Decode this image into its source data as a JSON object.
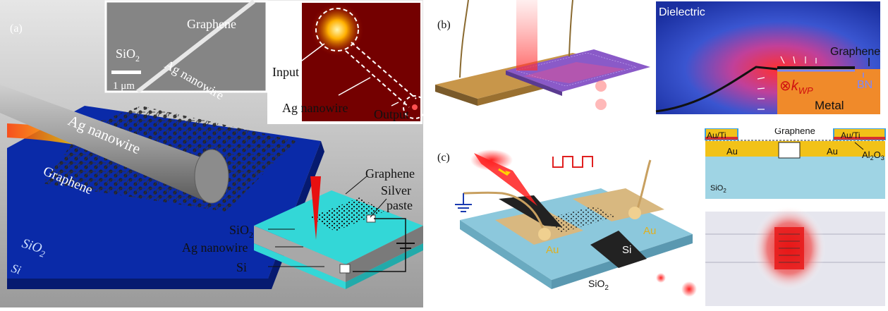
{
  "panel_a": {
    "label": "(a)",
    "inset_sem": {
      "graphene": "Graphene",
      "nanowire": "Ag nanowire",
      "substrate": "SiO",
      "substrate_sub": "2",
      "scale": "1 μm"
    },
    "inset_optical": {
      "input": "Input",
      "nanowire": "Ag nanowire",
      "output": "Output"
    },
    "main": {
      "nanowire": "Ag nanowire",
      "graphene": "Graphene",
      "sio2": "SiO",
      "sio2_sub": "2",
      "si": "Si"
    },
    "device": {
      "graphene": "Graphene",
      "silver_paste_1": "Silver",
      "silver_paste_2": "paste",
      "sio2": "SiO",
      "sio2_sub": "2",
      "nanowire": "Ag nanowire",
      "si": "Si"
    }
  },
  "panel_b": {
    "label": "(b)",
    "sim": {
      "dielectric": "Dielectric",
      "graphene": "Graphene",
      "kwp": "k",
      "kwp_sub": "WP",
      "bn": "BN",
      "metal": "Metal"
    }
  },
  "panel_c": {
    "label": "(c)",
    "device": {
      "au_left": "Au",
      "au_right": "Au",
      "si": "Si",
      "sio2": "SiO",
      "sio2_sub": "2"
    },
    "cross": {
      "graphene": "Graphene",
      "auti_left": "Au/Ti",
      "auti_right": "Au/Ti",
      "au_left": "Au",
      "au_right": "Au",
      "al2o3": "Al",
      "al2o3_sub1": "2",
      "al2o3_mid": "O",
      "al2o3_sub2": "3",
      "sio2": "SiO",
      "sio2_sub": "2"
    }
  }
}
